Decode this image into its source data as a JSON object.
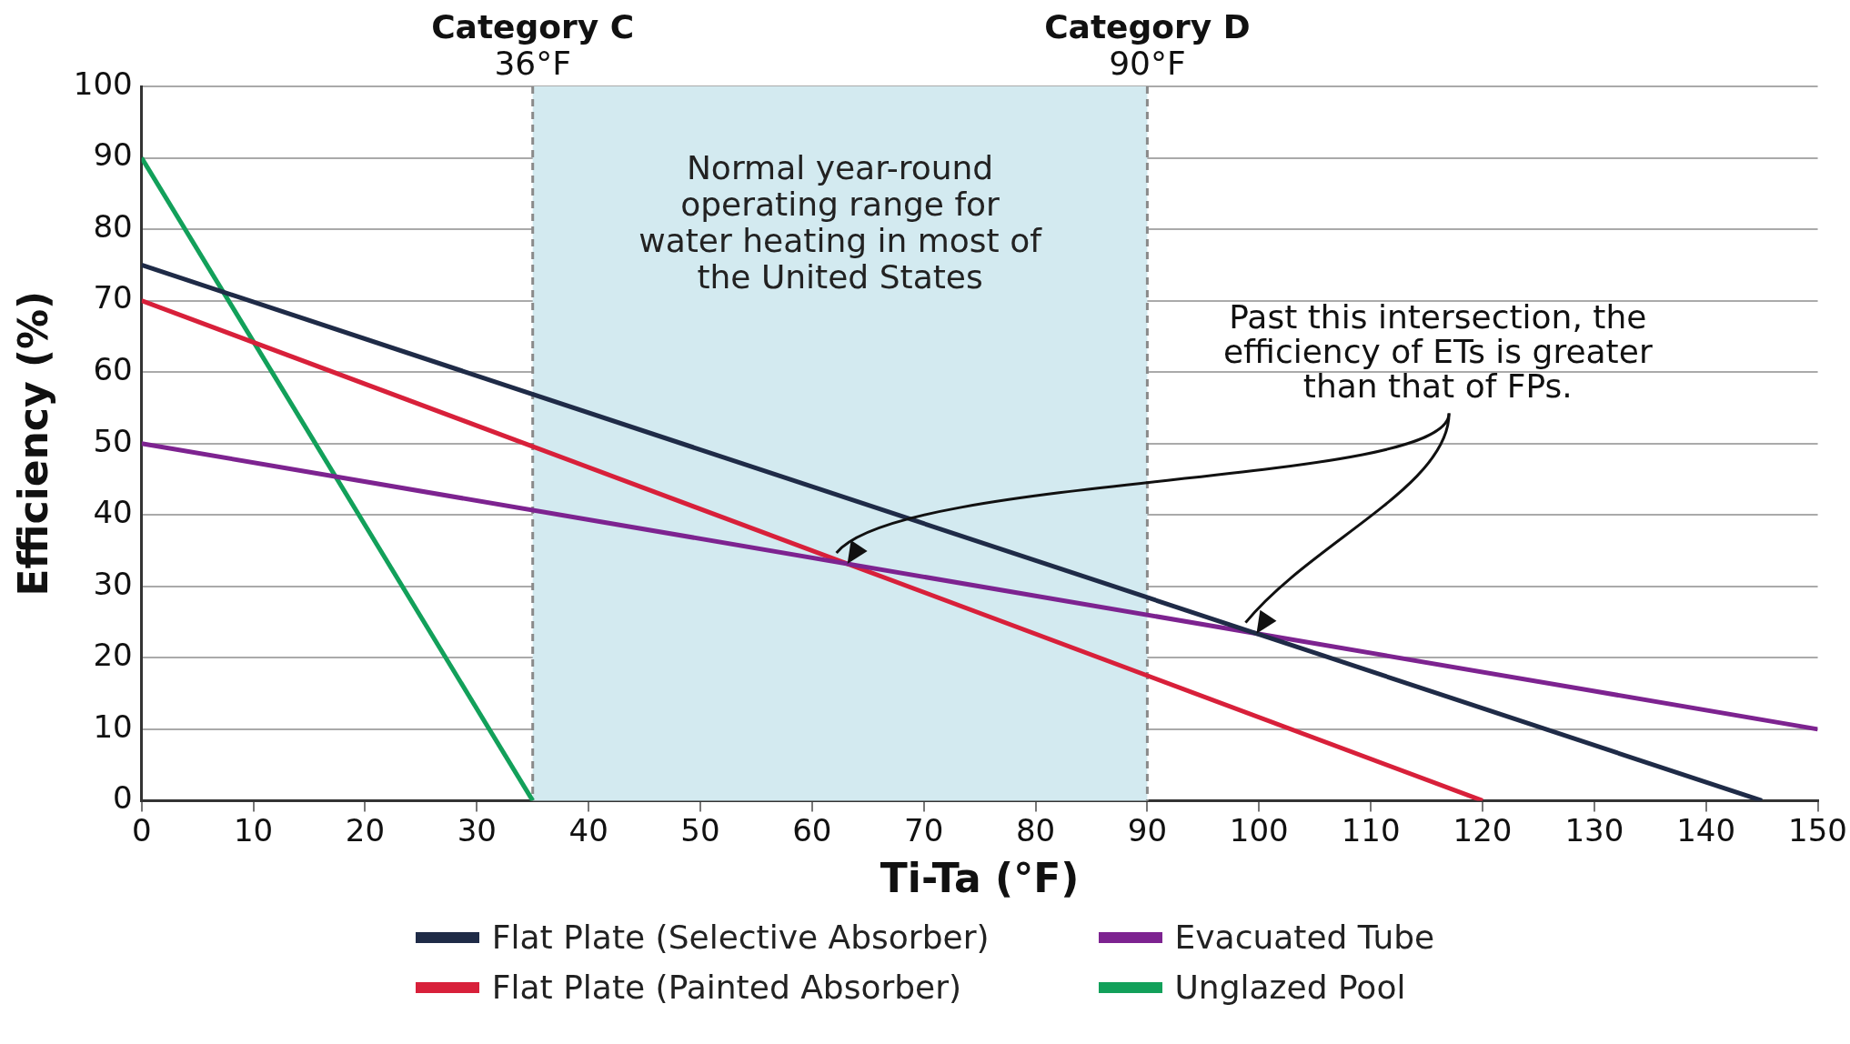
{
  "chart_data": {
    "type": "line",
    "xlabel": "Ti-Ta (°F)",
    "ylabel": "Efficiency (%)",
    "xlim": [
      0,
      150
    ],
    "xticks": [
      0,
      10,
      20,
      30,
      40,
      50,
      60,
      70,
      80,
      90,
      100,
      110,
      120,
      130,
      140,
      150
    ],
    "ylim": [
      0,
      100
    ],
    "yticks": [
      0,
      10,
      20,
      30,
      40,
      50,
      60,
      70,
      80,
      90,
      100
    ],
    "grid": "y",
    "legend": "bottom",
    "marker": "none",
    "line_style": "solid",
    "series": [
      {
        "name": "Flat Plate (Selective Absorber)",
        "color": "#1f2b47",
        "x": [
          0,
          145
        ],
        "values": [
          75,
          0
        ]
      },
      {
        "name": "Evacuated Tube",
        "color": "#7d2390",
        "x": [
          0,
          150
        ],
        "values": [
          50,
          10
        ]
      },
      {
        "name": "Flat Plate (Painted Absorber)",
        "color": "#d8203a",
        "x": [
          0,
          120
        ],
        "values": [
          70,
          0
        ]
      },
      {
        "name": "Unglazed Pool",
        "color": "#12a05a",
        "x": [
          0,
          35
        ],
        "values": [
          90,
          0
        ]
      }
    ],
    "ref_lines": [
      {
        "axis": "x",
        "value": 35,
        "label": "Category C\n36°F",
        "color": "#8a8a8a",
        "line_style": "dashed"
      },
      {
        "axis": "x",
        "value": 90,
        "label": "Category D\n90°F",
        "color": "#8a8a8a",
        "line_style": "dashed"
      }
    ],
    "bands": [
      {
        "axis": "x",
        "from": 35,
        "to": 90,
        "label": "Normal year-round operating range for water heating in most of the United States",
        "color": "#d3eaf0"
      }
    ],
    "annotations": [
      "Past this intersection, the efficiency of ETs is greater than that of FPs."
    ]
  }
}
